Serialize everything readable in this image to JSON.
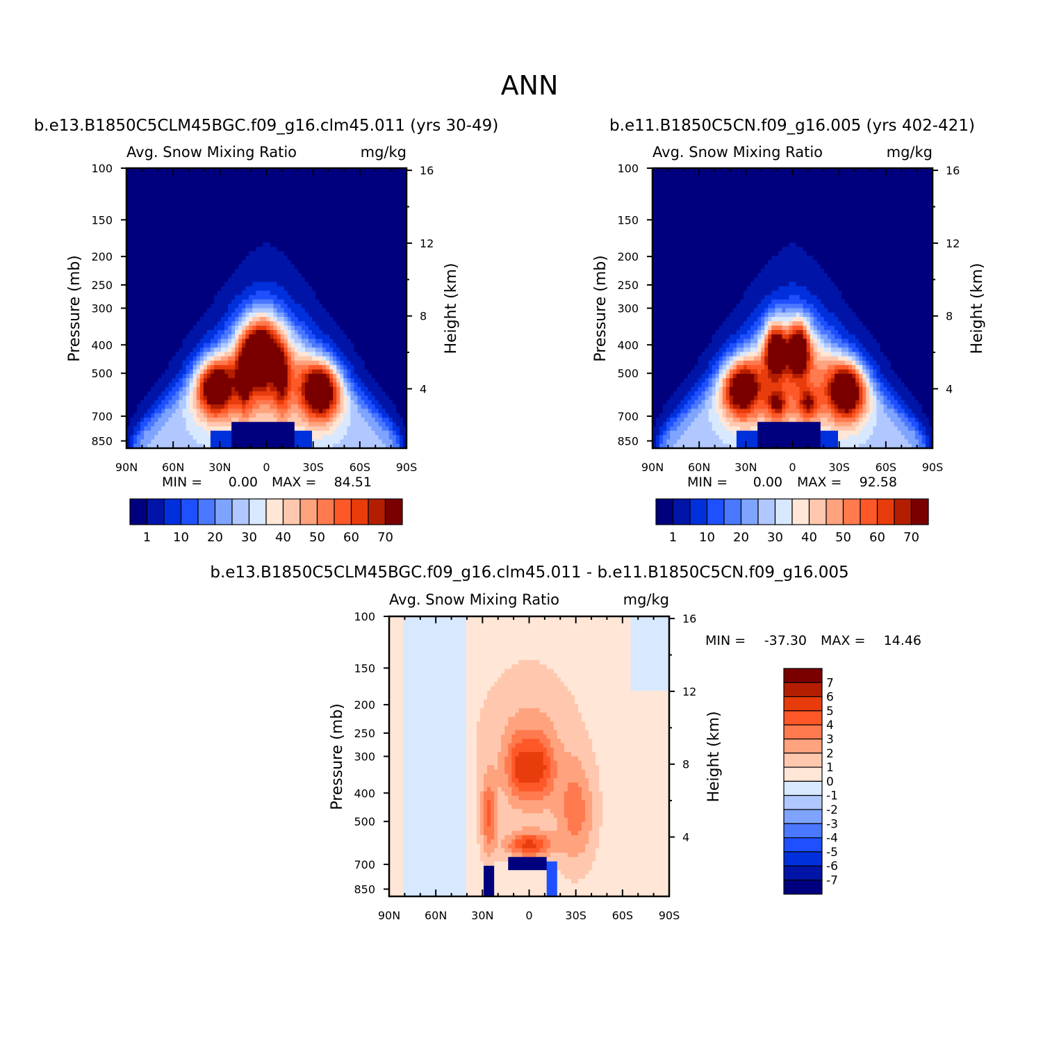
{
  "figure_title": "ANN",
  "colors": {
    "abs_levels": [
      "#00007f",
      "#0015a8",
      "#0030dc",
      "#1e50ff",
      "#4a78ff",
      "#7ea4ff",
      "#b0c8ff",
      "#d8e8ff",
      "#ffe6d6",
      "#ffc8ae",
      "#ffa27e",
      "#ff7a4e",
      "#ff5828",
      "#e83c0c",
      "#b41e00",
      "#7a0000"
    ],
    "diff_levels": [
      "#00007f",
      "#0015a8",
      "#0030dc",
      "#1e50ff",
      "#4a78ff",
      "#7ea4ff",
      "#b0c8ff",
      "#d8e8ff",
      "#ffe6d6",
      "#ffc8ae",
      "#ffa27e",
      "#ff7a4e",
      "#ff5828",
      "#e83c0c",
      "#b41e00",
      "#7a0000"
    ]
  },
  "chart_data": [
    {
      "type": "heatmap",
      "title": "b.e13.B1850C5CLM45BGC.f09_g16.clm45.011 (yrs 30-49)",
      "subtitle_left": "Avg. Snow Mixing Ratio",
      "subtitle_right": "mg/kg",
      "ylabel": "Pressure (mb)",
      "y2label": "Height (km)",
      "x_ticks": [
        "90N",
        "60N",
        "30N",
        "0",
        "30S",
        "60S",
        "90S"
      ],
      "y_ticks": [
        "100",
        "150",
        "200",
        "250",
        "300",
        "400",
        "500",
        "700",
        "850"
      ],
      "y2_ticks": [
        "16",
        "12",
        "8",
        "4"
      ],
      "min_label": "MIN =",
      "min_value": "0.00",
      "max_label": "MAX =",
      "max_value": "84.51",
      "colorbar_labels": [
        "1",
        "10",
        "20",
        "30",
        "40",
        "50",
        "60",
        "70"
      ],
      "xlim": [
        90,
        -90
      ],
      "ylim": [
        100,
        900
      ],
      "max": 84.51
    },
    {
      "type": "heatmap",
      "title": "b.e11.B1850C5CN.f09_g16.005 (yrs 402-421)",
      "subtitle_left": "Avg. Snow Mixing Ratio",
      "subtitle_right": "mg/kg",
      "ylabel": "Pressure (mb)",
      "y2label": "Height (km)",
      "x_ticks": [
        "90N",
        "60N",
        "30N",
        "0",
        "30S",
        "60S",
        "90S"
      ],
      "y_ticks": [
        "100",
        "150",
        "200",
        "250",
        "300",
        "400",
        "500",
        "700",
        "850"
      ],
      "y2_ticks": [
        "16",
        "12",
        "8",
        "4"
      ],
      "min_label": "MIN =",
      "min_value": "0.00",
      "max_label": "MAX =",
      "max_value": "92.58",
      "colorbar_labels": [
        "1",
        "10",
        "20",
        "30",
        "40",
        "50",
        "60",
        "70"
      ],
      "xlim": [
        90,
        -90
      ],
      "ylim": [
        100,
        900
      ],
      "max": 92.58
    },
    {
      "type": "heatmap",
      "title": "b.e13.B1850C5CLM45BGC.f09_g16.clm45.011 - b.e11.B1850C5CN.f09_g16.005",
      "subtitle_left": "Avg. Snow Mixing Ratio",
      "subtitle_right": "mg/kg",
      "ylabel": "Pressure (mb)",
      "y2label": "Height (km)",
      "x_ticks": [
        "90N",
        "60N",
        "30N",
        "0",
        "30S",
        "60S",
        "90S"
      ],
      "y_ticks": [
        "100",
        "150",
        "200",
        "250",
        "300",
        "400",
        "500",
        "700",
        "850"
      ],
      "y2_ticks": [
        "16",
        "12",
        "8",
        "4"
      ],
      "min_label": "MIN =",
      "min_value": "-37.30",
      "max_label": "MAX =",
      "max_value": "14.46",
      "colorbar_labels": [
        "7",
        "6",
        "5",
        "4",
        "3",
        "2",
        "1",
        "0",
        "-1",
        "-2",
        "-3",
        "-4",
        "-5",
        "-6",
        "-7"
      ],
      "xlim": [
        90,
        -90
      ],
      "ylim": [
        100,
        900
      ],
      "min": -37.3,
      "max": 14.46
    }
  ]
}
